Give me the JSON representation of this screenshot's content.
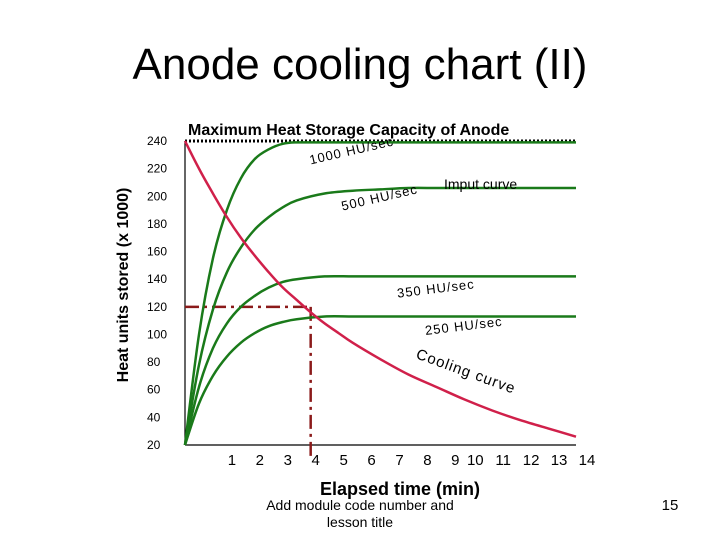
{
  "slide": {
    "title": "Anode cooling chart (II)",
    "footer": "Add module code number and lesson title",
    "page_number": "15"
  },
  "chart_data": {
    "type": "line",
    "title": "Maximum Heat Storage Capacity of Anode",
    "xlabel": "Elapsed time (min)",
    "ylabel": "Heat units stored (x 1000)",
    "x_ticks": [
      1,
      2,
      3,
      4,
      5,
      6,
      7,
      8,
      9,
      10,
      11,
      12,
      13,
      14
    ],
    "y_ticks": [
      20,
      40,
      60,
      80,
      100,
      120,
      140,
      160,
      180,
      200,
      220,
      240
    ],
    "xlim": [
      0,
      14
    ],
    "ylim": [
      20,
      240
    ],
    "max_capacity": 240,
    "colors": {
      "input": "#1a7a1a",
      "cooling": "#d0204a",
      "max": "#000000",
      "guide": "#8b1a1a"
    },
    "input_label": "Imput curve",
    "input_series": [
      {
        "name": "1000 HU/sec",
        "label_angle": -13,
        "x": [
          0,
          0.5,
          1,
          1.5,
          2,
          2.5,
          3,
          3.5,
          4,
          5,
          6,
          7,
          8,
          9,
          10,
          11,
          12,
          13,
          14
        ],
        "y": [
          20,
          100,
          155,
          190,
          213,
          227,
          234,
          238,
          239,
          239,
          239,
          239,
          239,
          239,
          239,
          239,
          239,
          239,
          239
        ]
      },
      {
        "name": "500 HU/sec",
        "label_angle": -13,
        "x": [
          0,
          0.5,
          1,
          1.5,
          2,
          2.5,
          3,
          3.5,
          4,
          5,
          6,
          7,
          8,
          9,
          10,
          11,
          12,
          13,
          14
        ],
        "y": [
          20,
          78,
          118,
          145,
          163,
          176,
          185,
          192,
          197,
          202,
          204,
          205,
          206,
          206,
          206,
          206,
          206,
          206,
          206
        ]
      },
      {
        "name": "350 HU/sec",
        "label_angle": -7,
        "x": [
          0,
          0.5,
          1,
          1.5,
          2,
          2.5,
          3,
          3.5,
          4,
          5,
          6,
          7,
          8,
          9,
          10,
          11,
          12,
          13,
          14
        ],
        "y": [
          20,
          62,
          90,
          108,
          120,
          128,
          134,
          138,
          140,
          142,
          142,
          142,
          142,
          142,
          142,
          142,
          142,
          142,
          142
        ]
      },
      {
        "name": "250 HU/sec",
        "label_angle": -7,
        "x": [
          0,
          0.5,
          1,
          1.5,
          2,
          2.5,
          3,
          3.5,
          4,
          5,
          6,
          7,
          8,
          9,
          10,
          11,
          12,
          13,
          14
        ],
        "y": [
          20,
          50,
          70,
          84,
          94,
          101,
          106,
          109,
          111,
          113,
          113,
          113,
          113,
          113,
          113,
          113,
          113,
          113,
          113
        ]
      }
    ],
    "cooling_series": {
      "name": "Cooling curve",
      "x": [
        0,
        0.5,
        1,
        1.5,
        2,
        2.5,
        3,
        3.5,
        4,
        4.5,
        5,
        5.5,
        6,
        7,
        8,
        9,
        10,
        11,
        12,
        13,
        14
      ],
      "y": [
        240,
        220,
        202,
        185,
        170,
        157,
        145,
        134,
        125,
        116,
        108,
        101,
        94,
        82,
        71,
        62,
        53,
        45,
        38,
        32,
        26
      ]
    },
    "guide_point": {
      "x": 4.5,
      "y": 120
    }
  }
}
